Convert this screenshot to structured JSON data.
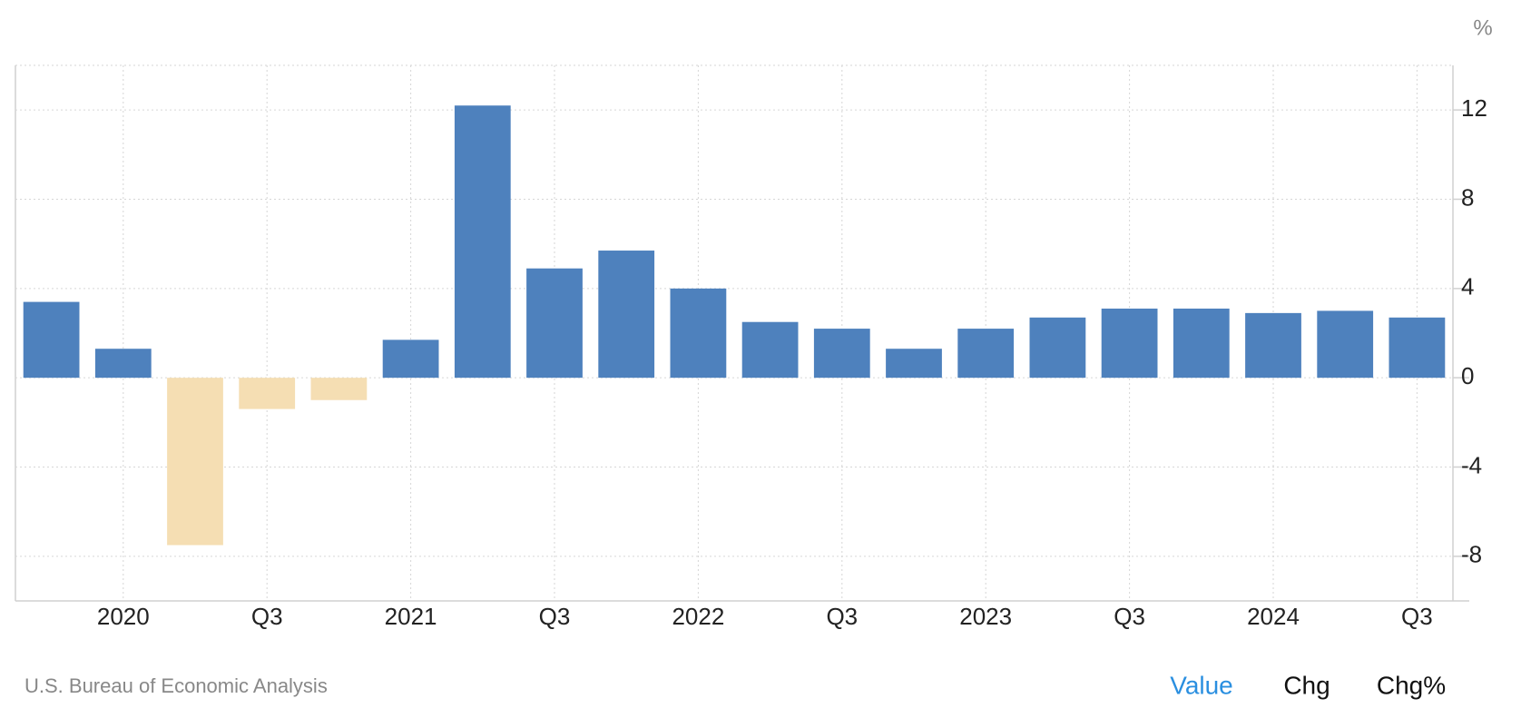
{
  "chart_data": {
    "type": "bar",
    "unit": "%",
    "source": "U.S. Bureau of Economic Analysis",
    "buttons": [
      "Value",
      "Chg",
      "Chg%"
    ],
    "active_button": 0,
    "categories": [
      null,
      "2020",
      null,
      "Q3",
      null,
      "2021",
      null,
      "Q3",
      null,
      "2022",
      null,
      "Q3",
      null,
      "2023",
      null,
      "Q3",
      null,
      "2024",
      null,
      "Q3"
    ],
    "values": [
      3.4,
      1.3,
      -7.5,
      -1.4,
      -1.0,
      1.7,
      12.2,
      4.9,
      5.7,
      4.0,
      2.5,
      2.2,
      1.3,
      2.2,
      2.7,
      3.1,
      3.1,
      2.9,
      3.0,
      2.7
    ],
    "color": "#4e81bd",
    "negative_color": "#f5deb3",
    "ylim": [
      -10,
      14
    ],
    "yticks": [
      -8,
      -4,
      0,
      4,
      8,
      12
    ],
    "grid": true
  }
}
